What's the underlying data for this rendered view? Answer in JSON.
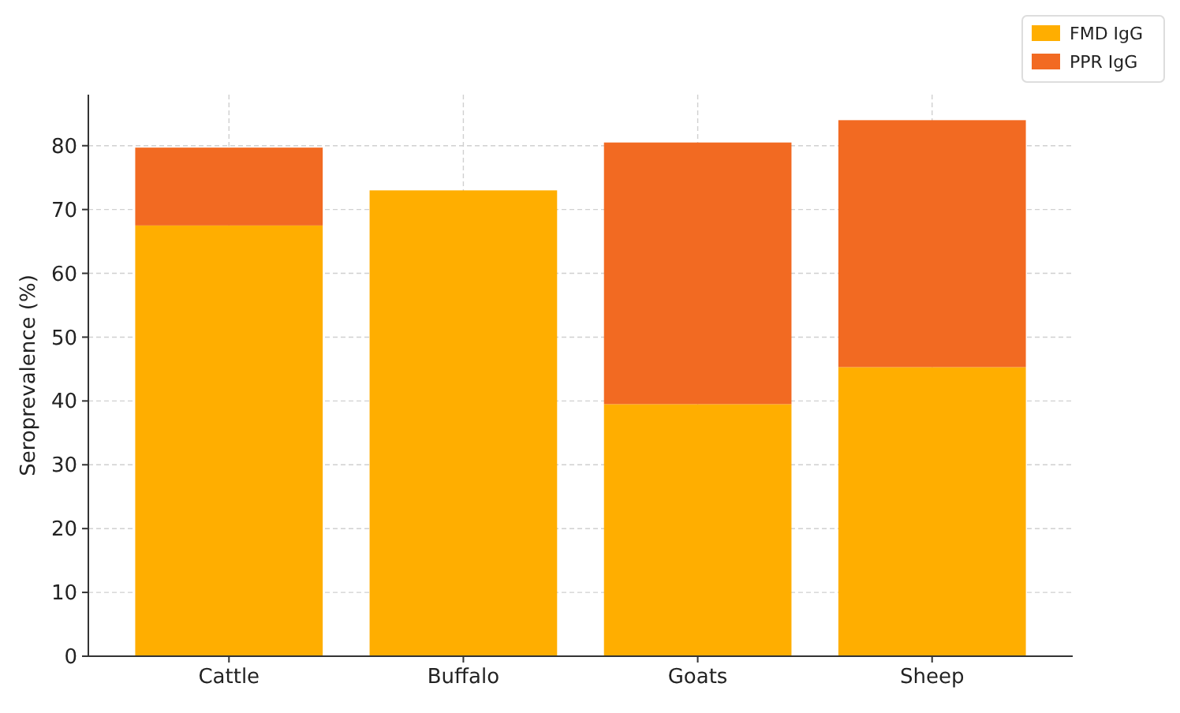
{
  "chart_data": {
    "type": "bar",
    "stacked": true,
    "ylabel": "Seroprevalence (%)",
    "categories": [
      "Cattle",
      "Buffalo",
      "Goats",
      "Sheep"
    ],
    "series": [
      {
        "name": "FMD IgG",
        "color": "#ffae00",
        "values": [
          67.5,
          73.0,
          39.5,
          45.3
        ]
      },
      {
        "name": "PPR IgG",
        "color": "#f26a22",
        "values": [
          12.2,
          0,
          41.0,
          38.7
        ]
      }
    ],
    "ylim": [
      0,
      88
    ],
    "yticks": [
      0,
      10,
      20,
      30,
      40,
      50,
      60,
      70,
      80
    ],
    "grid": true,
    "legend": "top right"
  }
}
